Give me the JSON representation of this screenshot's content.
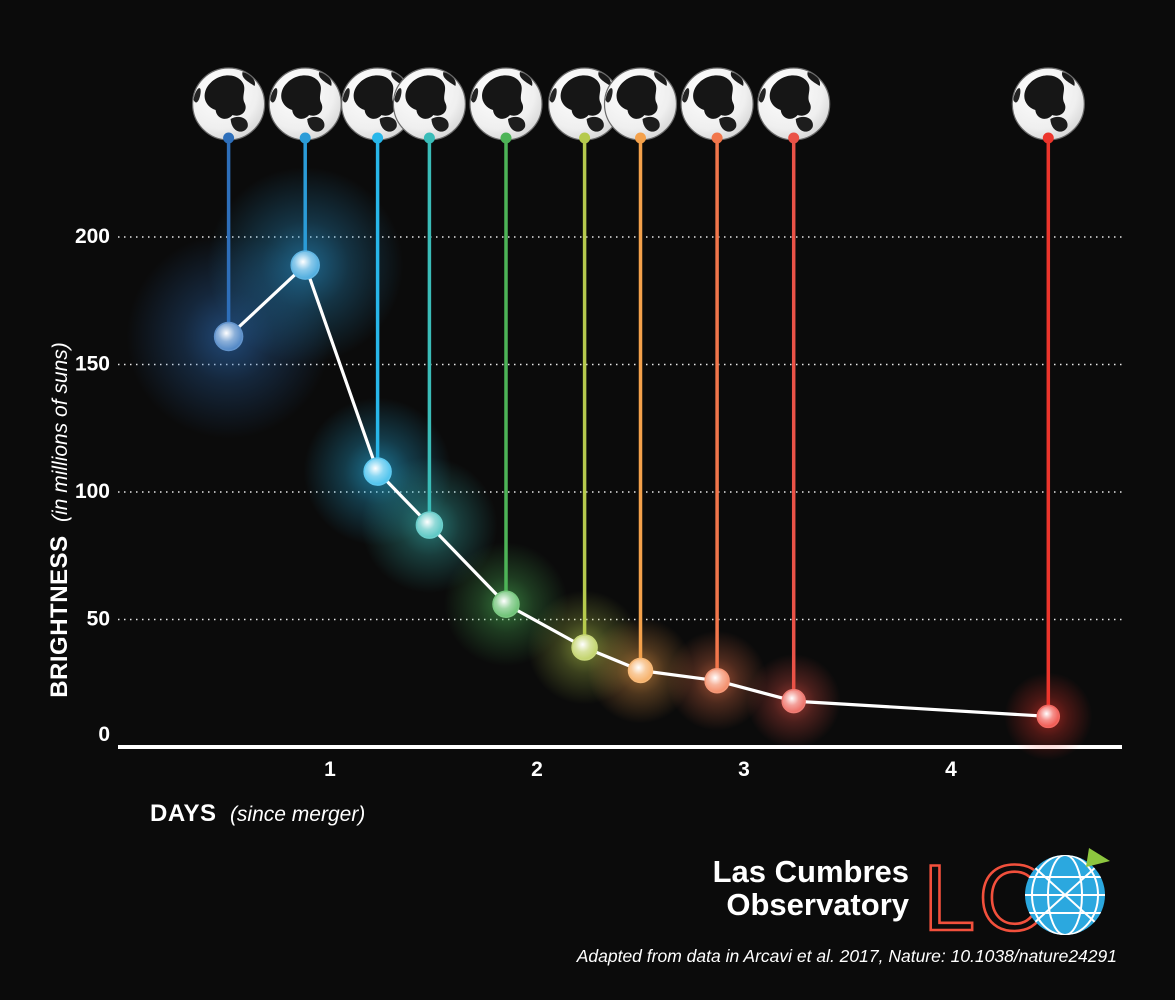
{
  "chart_data": {
    "type": "line",
    "xlabel": "DAYS",
    "xlabel_note": "(since merger)",
    "ylabel": "BRIGHTNESS",
    "ylabel_note": "(in millions of suns)",
    "xticks": [
      1,
      2,
      3,
      4
    ],
    "yticks": [
      200,
      150,
      100,
      50,
      0
    ],
    "xlim": [
      0,
      4.85
    ],
    "ylim": [
      0,
      220
    ],
    "grid": "dotted-horizontal",
    "line_color": "#ffffff",
    "marker_style": "glowing colored sphere with vertical stem rising to an Earth globe icon",
    "points": [
      {
        "x": 0.51,
        "y": 161,
        "color": "#2e6fba"
      },
      {
        "x": 0.88,
        "y": 189,
        "color": "#2b9cd8"
      },
      {
        "x": 1.23,
        "y": 108,
        "color": "#28b7ea"
      },
      {
        "x": 1.48,
        "y": 87,
        "color": "#3abcb8"
      },
      {
        "x": 1.85,
        "y": 56,
        "color": "#4db457"
      },
      {
        "x": 2.23,
        "y": 39,
        "color": "#b6ca4d"
      },
      {
        "x": 2.5,
        "y": 30,
        "color": "#f4a14b"
      },
      {
        "x": 2.87,
        "y": 26,
        "color": "#f1764b"
      },
      {
        "x": 3.24,
        "y": 18,
        "color": "#ea5247"
      },
      {
        "x": 4.47,
        "y": 12,
        "color": "#ec352c"
      }
    ]
  },
  "icons": {
    "earth_globe": "black-and-white Earth sphere above each data point",
    "lco_globe": "blue wireframe globe with green leaf at top right"
  },
  "footer": {
    "logo": {
      "line1": "Las Cumbres",
      "line2": "Observatory",
      "mark": "LC",
      "mark_color": "#f2503c",
      "globe_color": "#2ba8df",
      "leaf_color": "#8dc63f"
    },
    "credit": "Adapted from data in Arcavi et al. 2017, Nature: 10.1038/nature24291"
  }
}
